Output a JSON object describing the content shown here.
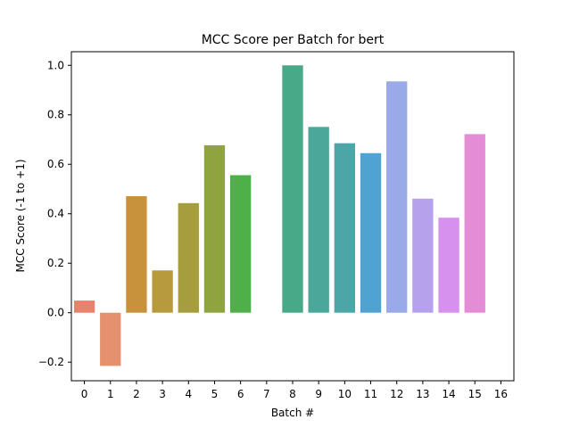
{
  "chart_data": {
    "type": "bar",
    "title": "MCC Score per Batch for bert",
    "xlabel": "Batch #",
    "ylabel": "MCC Score (-1 to +1)",
    "categories": [
      "0",
      "1",
      "2",
      "3",
      "4",
      "5",
      "6",
      "7",
      "8",
      "9",
      "10",
      "11",
      "12",
      "13",
      "14",
      "15",
      "16"
    ],
    "values": [
      0.049,
      -0.215,
      0.471,
      0.171,
      0.443,
      0.677,
      0.556,
      0.0,
      1.0,
      0.751,
      0.685,
      0.645,
      0.935,
      0.461,
      0.384,
      0.722,
      0.0
    ],
    "ylim": [
      -0.275,
      1.055
    ],
    "yticks": [
      -0.2,
      0.0,
      0.2,
      0.4,
      0.6,
      0.8,
      1.0
    ],
    "ytick_labels": [
      "−0.2",
      "0.0",
      "0.2",
      "0.4",
      "0.6",
      "0.8",
      "1.0"
    ],
    "colors": [
      "#e8816e",
      "#e5916f",
      "#c8923d",
      "#b79a3e",
      "#a59d3e",
      "#8fa43e",
      "#4fb04a",
      "#45ad73",
      "#48a989",
      "#4aa79a",
      "#4ca6a8",
      "#4fa3d3",
      "#9aa9e8",
      "#b6a1ec",
      "#d690ed",
      "#e58cd6",
      "#ea8fbe"
    ],
    "grid": false,
    "legend": "none"
  }
}
